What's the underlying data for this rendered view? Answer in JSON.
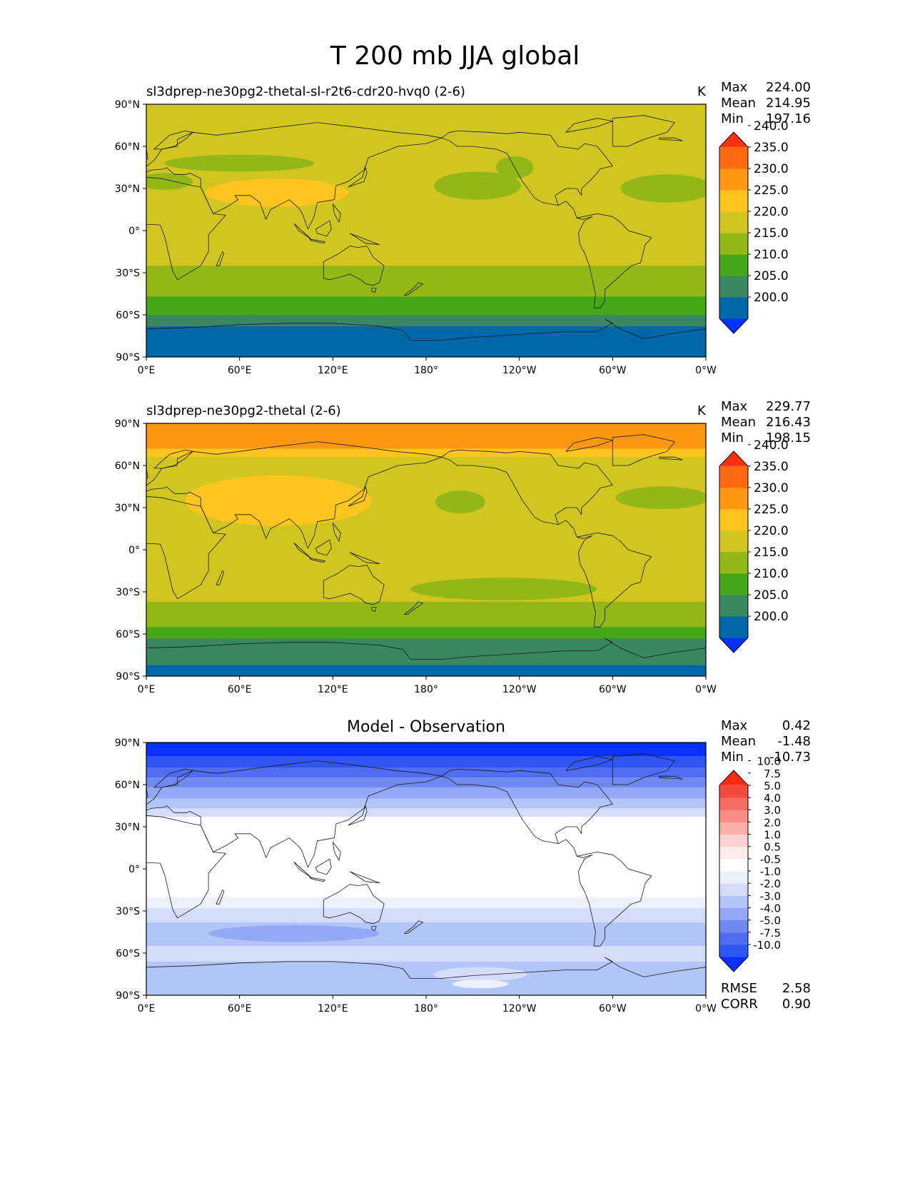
{
  "figure_title": "T 200 mb JJA global",
  "axes": {
    "lat_labels": [
      "90°N",
      "60°N",
      "30°N",
      "0°",
      "30°S",
      "60°S",
      "90°S"
    ],
    "lon_labels": [
      "0°E",
      "60°E",
      "120°E",
      "180°",
      "120°W",
      "60°W",
      "0°W"
    ]
  },
  "panels": [
    {
      "title": "sl3dprep-ne30pg2-thetal-sl-r2t6-cdr20-hvq0 (2-6)",
      "units": "K",
      "stats": [
        {
          "label": "Max",
          "value": "224.00"
        },
        {
          "label": "Mean",
          "value": "214.95"
        },
        {
          "label": "Min",
          "value": "197.16"
        }
      ],
      "fields": {
        "base_level": 5,
        "bands": [
          {
            "level": 1,
            "y": [
              -90,
              -68
            ]
          },
          {
            "level": 2,
            "y": [
              -68,
              -60
            ]
          },
          {
            "level": 3,
            "y": [
              -60,
              -47
            ]
          },
          {
            "level": 4,
            "y": [
              -47,
              -25
            ]
          },
          {
            "level": 5,
            "y": [
              -25,
              90
            ]
          }
        ],
        "blobs": [
          {
            "level": 4,
            "lon": 60,
            "lat": 48,
            "rx": 48,
            "ry": 6
          },
          {
            "level": 4,
            "lon": 12,
            "lat": 35,
            "rx": 18,
            "ry": 6
          },
          {
            "level": 6,
            "lon": 84,
            "lat": 27,
            "rx": 46,
            "ry": 10
          },
          {
            "level": 4,
            "lon": 213,
            "lat": 32,
            "rx": 28,
            "ry": 10
          },
          {
            "level": 4,
            "lon": 237,
            "lat": 45,
            "rx": 12,
            "ry": 8
          },
          {
            "level": 4,
            "lon": 335,
            "lat": 30,
            "rx": 30,
            "ry": 10
          }
        ]
      }
    },
    {
      "title": "sl3dprep-ne30pg2-thetal (2-6)",
      "units": "K",
      "stats": [
        {
          "label": "Max",
          "value": "229.77"
        },
        {
          "label": "Mean",
          "value": "216.43"
        },
        {
          "label": "Min",
          "value": "198.15"
        }
      ],
      "fields": {
        "base_level": 5,
        "bands": [
          {
            "level": 1,
            "y": [
              -90,
              -82
            ]
          },
          {
            "level": 2,
            "y": [
              -82,
              -63
            ]
          },
          {
            "level": 3,
            "y": [
              -63,
              -55
            ]
          },
          {
            "level": 4,
            "y": [
              -55,
              -37
            ]
          },
          {
            "level": 5,
            "y": [
              -37,
              66
            ]
          },
          {
            "level": 6,
            "y": [
              66,
              72
            ]
          },
          {
            "level": 7,
            "y": [
              72,
              90
            ]
          }
        ],
        "blobs": [
          {
            "level": 5,
            "lon": 158,
            "lat": -22,
            "rx": 42,
            "ry": 6
          },
          {
            "level": 4,
            "lon": 230,
            "lat": -28,
            "rx": 60,
            "ry": 8
          },
          {
            "level": 6,
            "lon": 85,
            "lat": 35,
            "rx": 60,
            "ry": 18
          },
          {
            "level": 4,
            "lon": 202,
            "lat": 34,
            "rx": 16,
            "ry": 8
          },
          {
            "level": 4,
            "lon": 332,
            "lat": 37,
            "rx": 30,
            "ry": 8
          }
        ]
      }
    },
    {
      "title": "Model - Observation",
      "units": "",
      "stats": [
        {
          "label": "Max",
          "value": "0.42"
        },
        {
          "label": "Mean",
          "value": "-1.48"
        },
        {
          "label": "Min",
          "value": "-10.73"
        }
      ],
      "metrics": [
        {
          "label": "RMSE",
          "value": "2.58"
        },
        {
          "label": "CORR",
          "value": "0.90"
        }
      ],
      "fields": {
        "base_level": 8,
        "bands": [
          {
            "level": 0,
            "y": [
              80,
              90
            ]
          },
          {
            "level": 1,
            "y": [
              72,
              80
            ]
          },
          {
            "level": 2,
            "y": [
              65,
              72
            ]
          },
          {
            "level": 3,
            "y": [
              58,
              65
            ]
          },
          {
            "level": 4,
            "y": [
              50,
              58
            ]
          },
          {
            "level": 5,
            "y": [
              43,
              50
            ]
          },
          {
            "level": 6,
            "y": [
              37,
              43
            ]
          },
          {
            "level": 8,
            "y": [
              -20,
              37
            ]
          },
          {
            "level": 7,
            "y": [
              -28,
              -20
            ]
          },
          {
            "level": 6,
            "y": [
              -38,
              -28
            ]
          },
          {
            "level": 5,
            "y": [
              -55,
              -38
            ]
          },
          {
            "level": 6,
            "y": [
              -66,
              -55
            ]
          },
          {
            "level": 5,
            "y": [
              -90,
              -66
            ]
          }
        ],
        "blobs": [
          {
            "level": 4,
            "lon": 95,
            "lat": -46,
            "rx": 55,
            "ry": 6
          },
          {
            "level": 6,
            "lon": 215,
            "lat": -75,
            "rx": 30,
            "ry": 5
          },
          {
            "level": 7,
            "lon": 215,
            "lat": -82,
            "rx": 18,
            "ry": 3
          }
        ]
      }
    }
  ],
  "colorbars": {
    "absolute": {
      "colors": [
        "#0033ff",
        "#0067a8",
        "#398860",
        "#43a716",
        "#94b718",
        "#d1c522",
        "#fbc41f",
        "#fc9713",
        "#fd6a12",
        "#ff3010"
      ],
      "labels": [
        "200.0",
        "205.0",
        "210.0",
        "215.0",
        "220.0",
        "225.0",
        "230.0",
        "235.0",
        "240.0"
      ]
    },
    "difference": {
      "colors": [
        "#0a2fff",
        "#2f56f2",
        "#4f6df0",
        "#6f89f0",
        "#93a9f5",
        "#b3c4f7",
        "#d3ddfa",
        "#ebf0fc",
        "#ffffff",
        "#fdeceb",
        "#fbd2cf",
        "#f9b0aa",
        "#f78f87",
        "#f56d64",
        "#f34a40",
        "#ff2a12"
      ],
      "labels": [
        "-10.0",
        "-7.5",
        "-5.0",
        "-4.0",
        "-3.0",
        "-2.0",
        "-1.0",
        "-0.5",
        "0.5",
        "1.0",
        "2.0",
        "3.0",
        "4.0",
        "5.0",
        "7.5",
        "10.0"
      ]
    }
  },
  "coastlines": [
    "M -17,15 L -17,28 L -9,36 L 0,38 L 10,37 L 30,32 L 35,31 L 43,12 L 51,11 L 40,-3 L 40,-15 L 35,-25 L 20,-35 L 17,-29 L 12,-5 L 9,4 L -8,5 L -17,15 Z",
    "M 45,-25 L 49,-15 L 50,-16 L 47,-25 Z",
    "M -9,43 L -2,44 L 5,50 L 10,58 L 20,60 L 20,65 L 30,70 L 45,68 L 60,70 L 80,73 L 110,77 L 140,73 L 160,70 L 180,68 L 190,66 L 180,62 L 162,60 L 155,57 L 143,52 L 140,43 L 130,35 L 122,32 L 121,22 L 110,20 L 108,10 L 104,1 L 100,13 L 98,16 L 92,22 L 80,15 L 77,8 L 73,20 L 67,25 L 57,25 L 59,22 L 52,17 L 43,12 L 35,31 L 35,37 L 28,41 L 26,40 L 20,40 L 18,40 L 13,45 L 12,44 L 3,43 L -9,37 L -9,43 Z",
    "M 5,58 L 15,68 L 25,71 L 30,70 L 25,65 L 18,60 L 10,58 Z",
    "M -6,50 L 1,51 L 0,58 L -5,58 Z",
    "M -10,52 L -6,52 L -6,55 L -10,54 Z",
    "M 130,31 L 140,35 L 142,41 L 141,45 L 139,38 L 130,31 Z",
    "M 95,5 L 106,-6 L 98,0 Z",
    "M 109,1 L 118,7 L 119,1 L 116,-4 L 110,-2 Z",
    "M 105,-6 L 115,-8 L 114,-9 L 106,-7 Z",
    "M 131,-2 L 150,-10 L 141,-9 L 131,-2 Z",
    "M 120,19 L 125,12 L 124,6 L 121,12 Z",
    "M 114,-22 L 114,-34 L 118,-35 L 125,-33 L 131,-31 L 138,-35 L 141,-38 L 146,-39 L 150,-37 L 153,-25 L 146,-19 L 142,-11 L 136,-12 L 131,-11 L 123,-17 Z",
    "M 145,-41 L 148,-41 L 147,-44 L 145,-43 Z",
    "M 166,-46 L 172,-41 L 175,-37 L 178,-38 L 173,-42 L 168,-46 Z",
    "M 190,66 L 195,70 L 200,71 L 220,70 L 232,69 L 240,70 L 260,68 L 265,60 L 278,58 L 282,62 L 290,60 L 296,52 L 300,46 L 292,44 L 290,41 L 285,35 L 280,30 L 280,25 L 277,30 L 270,30 L 263,25 L 265,18 L 270,21 L 275,15 L 277,9 L 281,8 L 287,10 L 282,7 L 280,3 L 278,-2 L 279,-10 L 282,-16 L 285,-25 L 287,-35 L 289,-45 L 288,-55 L 292,-55 L 295,-50 L 295,-42 L 302,-35 L 312,-25 L 318,-23 L 321,-10 L 325,-5 L 310,0 L 305,6 L 300,10 L 290,12 L 277,9 L 275,15 L 270,21 L 265,18 L 255,20 L 250,23 L 242,35 L 236,47 L 232,55 L 225,58 L 210,60 L 200,60 L 195,64 L 190,66 Z",
    "M 300,60 L 310,60 L 320,65 L 335,70 L 340,77 L 320,82 L 300,80 L 300,70 Z",
    "M 330,65 L 345,64 L 340,66 L 330,66 Z",
    "M 270,70 L 290,74 L 300,78 L 290,80 L 275,76 Z",
    "M 0,-70 L 30,-69 L 60,-67 L 90,-66 L 120,-66 L 150,-68 L 165,-71 L 170,-78 L 190,-78 L 210,-76 L 240,-74 L 270,-72 L 290,-72 L 300,-66 L 295,-63 L 305,-70 L 320,-77 L 340,-73 L 360,-70"
  ]
}
